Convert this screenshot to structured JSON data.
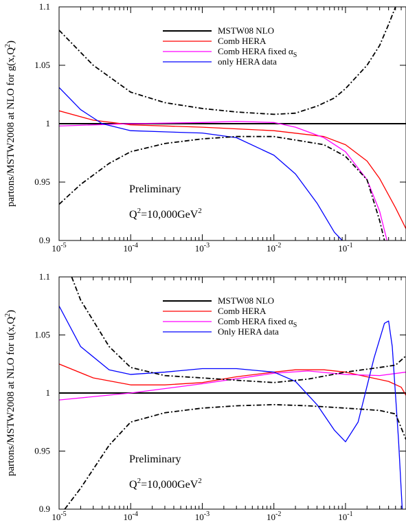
{
  "chart_data": [
    {
      "type": "line",
      "panel": "gluon",
      "title": "",
      "xlabel": "",
      "ylabel_text": "partons/MSTW2008 at NLO for g(x,Q",
      "ylabel_sup": "2",
      "ylabel_close": ")",
      "x_scale": "log",
      "xlim": [
        1e-05,
        0.7
      ],
      "ylim": [
        0.9,
        1.1
      ],
      "x_ticks": [
        {
          "value": 1e-05,
          "base": "10",
          "exp": "-5"
        },
        {
          "value": 0.0001,
          "base": "10",
          "exp": "-4"
        },
        {
          "value": 0.001,
          "base": "10",
          "exp": "-3"
        },
        {
          "value": 0.01,
          "base": "10",
          "exp": "-2"
        },
        {
          "value": 0.1,
          "base": "10",
          "exp": "-1"
        }
      ],
      "y_ticks": [
        {
          "value": 0.9,
          "label": "0.9"
        },
        {
          "value": 0.95,
          "label": "0.95"
        },
        {
          "value": 1.0,
          "label": "1"
        },
        {
          "value": 1.05,
          "label": "1.05"
        },
        {
          "value": 1.1,
          "label": "1.1"
        }
      ],
      "annotations": {
        "line1": "Preliminary",
        "q": "Q",
        "q_sup": "2",
        "q_rest": "=10,000GeV",
        "q_unit_sup": "2"
      },
      "legend_position": "top-right",
      "series": [
        {
          "name": "MSTW08 NLO",
          "label_suffix": "",
          "color": "#000000",
          "style": "solid-thick",
          "x": [
            1e-05,
            0.7
          ],
          "y": [
            1.0,
            1.0
          ]
        },
        {
          "name": "Comb HERA",
          "label_suffix": "",
          "color": "#ff0000",
          "style": "solid",
          "x": [
            1e-05,
            3e-05,
            0.0001,
            0.001,
            0.01,
            0.05,
            0.1,
            0.2,
            0.3,
            0.5,
            0.7
          ],
          "y": [
            1.011,
            1.003,
            0.999,
            0.997,
            0.994,
            0.989,
            0.982,
            0.968,
            0.953,
            0.928,
            0.91
          ]
        },
        {
          "name": "Comb HERA fixed α",
          "label_suffix": "S",
          "color": "#ff00ff",
          "style": "solid",
          "x": [
            1e-05,
            0.0001,
            0.001,
            0.003,
            0.01,
            0.02,
            0.05,
            0.1,
            0.2,
            0.3,
            0.38
          ],
          "y": [
            0.998,
            1.0,
            1.001,
            1.002,
            1.001,
            0.997,
            0.988,
            0.976,
            0.952,
            0.925,
            0.9
          ]
        },
        {
          "name": "only HERA data",
          "label_suffix": "",
          "color": "#0000ff",
          "style": "solid",
          "x": [
            1e-05,
            2e-05,
            4e-05,
            0.0001,
            0.0003,
            0.001,
            0.003,
            0.01,
            0.02,
            0.04,
            0.07,
            0.09
          ],
          "y": [
            1.031,
            1.012,
            1.0,
            0.994,
            0.993,
            0.992,
            0.988,
            0.973,
            0.957,
            0.932,
            0.907,
            0.9
          ]
        },
        {
          "name": "",
          "label_suffix": "",
          "color": "#000000",
          "style": "dashdot",
          "x": [
            1e-05,
            3e-05,
            0.0001,
            0.0003,
            0.001,
            0.003,
            0.01,
            0.02,
            0.04,
            0.07,
            0.1,
            0.2,
            0.3,
            0.4,
            0.5
          ],
          "y": [
            1.08,
            1.05,
            1.027,
            1.018,
            1.013,
            1.01,
            1.008,
            1.009,
            1.015,
            1.022,
            1.03,
            1.05,
            1.067,
            1.085,
            1.1
          ]
        },
        {
          "name": "",
          "label_suffix": "",
          "color": "#000000",
          "style": "dashdot",
          "x": [
            1e-05,
            2e-05,
            5e-05,
            0.0001,
            0.0003,
            0.001,
            0.003,
            0.01,
            0.02,
            0.05,
            0.1,
            0.2,
            0.3,
            0.35
          ],
          "y": [
            0.931,
            0.948,
            0.966,
            0.976,
            0.983,
            0.987,
            0.989,
            0.989,
            0.986,
            0.982,
            0.972,
            0.952,
            0.917,
            0.9
          ]
        }
      ]
    },
    {
      "type": "line",
      "panel": "up",
      "title": "",
      "xlabel": "",
      "ylabel_text": "partons/MSTW2008 at NLO for u(x,Q",
      "ylabel_sup": "2",
      "ylabel_close": ")",
      "x_scale": "log",
      "xlim": [
        1e-05,
        0.7
      ],
      "ylim": [
        0.9,
        1.1
      ],
      "x_ticks": [
        {
          "value": 1e-05,
          "base": "10",
          "exp": "-5"
        },
        {
          "value": 0.0001,
          "base": "10",
          "exp": "-4"
        },
        {
          "value": 0.001,
          "base": "10",
          "exp": "-3"
        },
        {
          "value": 0.01,
          "base": "10",
          "exp": "-2"
        },
        {
          "value": 0.1,
          "base": "10",
          "exp": "-1"
        }
      ],
      "y_ticks": [
        {
          "value": 0.9,
          "label": "0.9"
        },
        {
          "value": 0.95,
          "label": "0.95"
        },
        {
          "value": 1.0,
          "label": "1"
        },
        {
          "value": 1.05,
          "label": "1.05"
        },
        {
          "value": 1.1,
          "label": "1.1"
        }
      ],
      "annotations": {
        "line1": "Preliminary",
        "q": "Q",
        "q_sup": "2",
        "q_rest": "=10,000GeV",
        "q_unit_sup": "2"
      },
      "legend_position": "top-right",
      "series": [
        {
          "name": "MSTW08 NLO",
          "label_suffix": "",
          "color": "#000000",
          "style": "solid-thick",
          "x": [
            1e-05,
            0.7
          ],
          "y": [
            1.0,
            1.0
          ]
        },
        {
          "name": "Comb HERA",
          "label_suffix": "",
          "color": "#ff0000",
          "style": "solid",
          "x": [
            1e-05,
            3e-05,
            0.0001,
            0.0003,
            0.001,
            0.003,
            0.01,
            0.02,
            0.05,
            0.1,
            0.2,
            0.4,
            0.6,
            0.7
          ],
          "y": [
            1.025,
            1.013,
            1.007,
            1.007,
            1.009,
            1.014,
            1.018,
            1.02,
            1.02,
            1.018,
            1.014,
            1.01,
            1.005,
            0.998
          ]
        },
        {
          "name": "Comb HERA  fixed α",
          "label_suffix": "S",
          "color": "#ff00ff",
          "style": "solid",
          "x": [
            1e-05,
            0.0001,
            0.001,
            0.01,
            0.03,
            0.1,
            0.3,
            0.7
          ],
          "y": [
            0.994,
            1.0,
            1.008,
            1.017,
            1.019,
            1.016,
            1.015,
            1.018
          ]
        },
        {
          "name": "Only HERA data",
          "label_suffix": "",
          "color": "#0000ff",
          "style": "solid",
          "x": [
            1e-05,
            2e-05,
            5e-05,
            0.0001,
            0.0003,
            0.001,
            0.003,
            0.01,
            0.02,
            0.04,
            0.07,
            0.1,
            0.15,
            0.25,
            0.35,
            0.4,
            0.45,
            0.55,
            0.62
          ],
          "y": [
            1.075,
            1.04,
            1.02,
            1.016,
            1.018,
            1.021,
            1.021,
            1.018,
            1.01,
            0.99,
            0.968,
            0.958,
            0.975,
            1.03,
            1.06,
            1.062,
            1.04,
            0.96,
            0.9
          ]
        },
        {
          "name": "",
          "label_suffix": "",
          "color": "#000000",
          "style": "dashdot",
          "x": [
            1.5e-05,
            2e-05,
            5e-05,
            0.0001,
            0.0003,
            0.001,
            0.003,
            0.01,
            0.03,
            0.1,
            0.3,
            0.5,
            0.7
          ],
          "y": [
            1.1,
            1.08,
            1.04,
            1.022,
            1.015,
            1.013,
            1.011,
            1.009,
            1.012,
            1.018,
            1.022,
            1.024,
            1.032
          ]
        },
        {
          "name": "",
          "label_suffix": "",
          "color": "#000000",
          "style": "dashdot",
          "x": [
            1.2e-05,
            2e-05,
            5e-05,
            0.0001,
            0.0003,
            0.001,
            0.003,
            0.01,
            0.03,
            0.1,
            0.3,
            0.5,
            0.6,
            0.7
          ],
          "y": [
            0.9,
            0.918,
            0.955,
            0.975,
            0.983,
            0.987,
            0.989,
            0.99,
            0.989,
            0.987,
            0.985,
            0.982,
            0.97,
            0.96
          ]
        }
      ]
    }
  ]
}
